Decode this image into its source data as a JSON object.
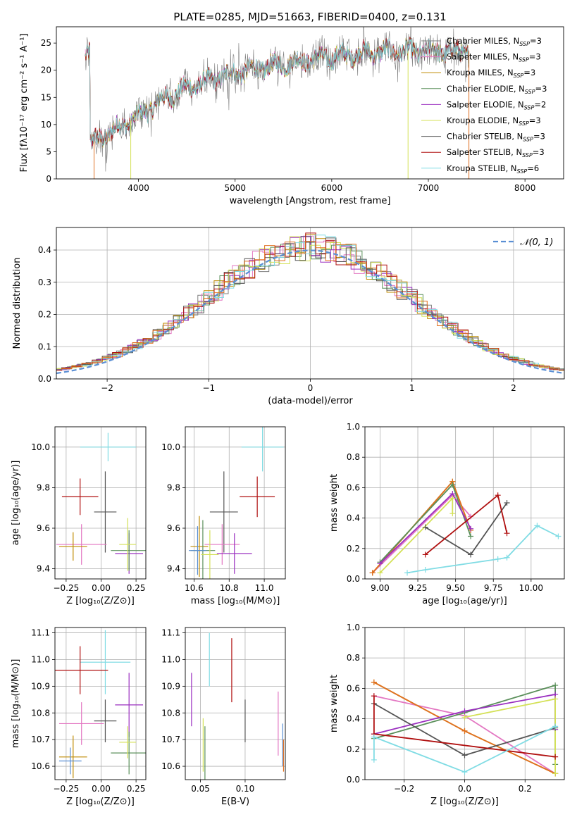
{
  "title": "PLATE=0285, MJD=51663, FIBERID=0400, z=0.131",
  "colors": {
    "chabrier_miles": "#808080",
    "salpeter_miles": "#e377c2",
    "kroupa_miles": "#bf8a00",
    "chabrier_elodie": "#5a8f5a",
    "salpeter_elodie": "#9b30c0",
    "kroupa_elodie": "#d4e157",
    "chabrier_stelib": "#555555",
    "salpeter_stelib": "#b01010",
    "kroupa_stelib": "#80dce4",
    "orange": "#e07020",
    "blue": "#5a8fd4",
    "normal": "#5a8fd4"
  },
  "chart_data": [
    {
      "id": "spectrum",
      "type": "line",
      "title": "PLATE=0285, MJD=51663, FIBERID=0400, z=0.131",
      "xlabel": "wavelength [Angstrom, rest frame]",
      "ylabel": "Flux [fλ10⁻¹⁷ erg cm⁻² s⁻¹ A⁻¹]",
      "xlim": [
        3150,
        8400
      ],
      "ylim": [
        0,
        28
      ],
      "xticks": [
        4000,
        5000,
        6000,
        7000,
        8000
      ],
      "yticks": [
        0,
        5,
        10,
        15,
        20,
        25
      ],
      "legend_position": "top-right",
      "legend": [
        {
          "label": "Chabrier MILES, N",
          "sub": "SSP",
          "tail": "=3",
          "color": "#808080"
        },
        {
          "label": "Salpeter MILES, N",
          "sub": "SSP",
          "tail": "=3",
          "color": "#e377c2"
        },
        {
          "label": "Kroupa MILES, N",
          "sub": "SSP",
          "tail": "=3",
          "color": "#bf8a00"
        },
        {
          "label": "Chabrier ELODIE, N",
          "sub": "SSP",
          "tail": "=3",
          "color": "#5a8f5a"
        },
        {
          "label": "Salpeter ELODIE, N",
          "sub": "SSP",
          "tail": "=2",
          "color": "#9b30c0"
        },
        {
          "label": "Kroupa ELODIE, N",
          "sub": "SSP",
          "tail": "=3",
          "color": "#d4e157"
        },
        {
          "label": "Chabrier STELIB, N",
          "sub": "SSP",
          "tail": "=3",
          "color": "#555555"
        },
        {
          "label": "Salpeter STELIB, N",
          "sub": "SSP",
          "tail": "=3",
          "color": "#b01010"
        },
        {
          "label": "Kroupa STELIB, N",
          "sub": "SSP",
          "tail": "=6",
          "color": "#80dce4"
        }
      ],
      "continuum": [
        [
          3500,
          6.5
        ],
        [
          3700,
          8.5
        ],
        [
          3900,
          10.5
        ],
        [
          4000,
          11.5
        ],
        [
          4200,
          14
        ],
        [
          4400,
          16
        ],
        [
          4700,
          18
        ],
        [
          5000,
          19.5
        ],
        [
          5300,
          20.5
        ],
        [
          5600,
          21.5
        ],
        [
          6000,
          22.5
        ],
        [
          6300,
          23
        ],
        [
          6600,
          23.5
        ],
        [
          7000,
          23.5
        ],
        [
          7400,
          23.5
        ]
      ]
    },
    {
      "id": "residuals",
      "type": "histogram",
      "xlabel": "(data-model)/error",
      "ylabel": "Normed distribution",
      "xlim": [
        -2.5,
        2.5
      ],
      "ylim": [
        0,
        0.47
      ],
      "xticks": [
        -2,
        -1,
        0,
        1,
        2
      ],
      "yticks": [
        0.0,
        0.1,
        0.2,
        0.3,
        0.4
      ],
      "grid": true,
      "legend_position": "top-right",
      "legend_label": "𝒩(0, 1)",
      "bin_width": 0.1
    },
    {
      "id": "age_vs_Z",
      "type": "errorbar",
      "xlabel": "Z [log₁₀(Z/Z⊙)]",
      "ylabel": "age  [log₁₀(age/yr)]",
      "xlim": [
        -0.33,
        0.32
      ],
      "ylim": [
        9.35,
        10.1
      ],
      "xticks": [
        -0.25,
        0.0,
        0.25
      ],
      "yticks": [
        9.4,
        9.6,
        9.8,
        10.0
      ],
      "grid": true,
      "points": [
        {
          "x": 0.05,
          "y": 10.0,
          "xerr": 0.2,
          "yerr": 0.07,
          "color": "#80dce4"
        },
        {
          "x": -0.15,
          "y": 9.755,
          "xerr": 0.13,
          "yerr": 0.09,
          "color": "#b01010"
        },
        {
          "x": 0.03,
          "y": 9.68,
          "xerr": 0.08,
          "yerr": 0.2,
          "color": "#555555"
        },
        {
          "x": -0.14,
          "y": 9.52,
          "xerr": 0.18,
          "yerr": 0.1,
          "color": "#e377c2"
        },
        {
          "x": -0.2,
          "y": 9.51,
          "xerr": 0.1,
          "yerr": 0.07,
          "color": "#bf8a00"
        },
        {
          "x": 0.2,
          "y": 9.475,
          "xerr": 0.1,
          "yerr": 0.1,
          "color": "#9b30c0"
        },
        {
          "x": 0.2,
          "y": 9.49,
          "xerr": 0.13,
          "yerr": 0.1,
          "color": "#5a8f5a"
        },
        {
          "x": 0.19,
          "y": 9.52,
          "xerr": 0.06,
          "yerr": 0.13,
          "color": "#d4e157"
        }
      ]
    },
    {
      "id": "age_vs_mass",
      "type": "errorbar",
      "xlabel": "mass [log₁₀(M/M⊙)]",
      "ylabel": "",
      "xlim": [
        10.55,
        11.12
      ],
      "ylim": [
        9.35,
        10.1
      ],
      "xticks": [
        10.6,
        10.8,
        11.0
      ],
      "yticks": [
        9.4,
        9.6,
        9.8,
        10.0
      ],
      "grid": true,
      "points": [
        {
          "x": 10.99,
          "y": 10.0,
          "xerr": 0.12,
          "yerr": 0.12,
          "color": "#80dce4"
        },
        {
          "x": 10.96,
          "y": 9.755,
          "xerr": 0.1,
          "yerr": 0.1,
          "color": "#b01010"
        },
        {
          "x": 10.77,
          "y": 9.68,
          "xerr": 0.08,
          "yerr": 0.2,
          "color": "#555555"
        },
        {
          "x": 10.76,
          "y": 9.52,
          "xerr": 0.1,
          "yerr": 0.1,
          "color": "#e377c2"
        },
        {
          "x": 10.63,
          "y": 9.51,
          "xerr": 0.05,
          "yerr": 0.15,
          "color": "#bf8a00"
        },
        {
          "x": 10.83,
          "y": 9.475,
          "xerr": 0.1,
          "yerr": 0.1,
          "color": "#9b30c0"
        },
        {
          "x": 10.65,
          "y": 9.49,
          "xerr": 0.07,
          "yerr": 0.15,
          "color": "#5a8f5a"
        },
        {
          "x": 10.69,
          "y": 9.47,
          "xerr": 0.05,
          "yerr": 0.12,
          "color": "#d4e157"
        },
        {
          "x": 10.62,
          "y": 9.49,
          "xerr": 0.05,
          "yerr": 0.12,
          "color": "#5a8fd4"
        }
      ]
    },
    {
      "id": "weight_vs_age",
      "type": "line",
      "xlabel": "age  [log₁₀(age/yr)]",
      "ylabel": "mass weight",
      "xlim": [
        8.9,
        10.22
      ],
      "ylim": [
        0,
        1
      ],
      "xticks": [
        9.0,
        9.25,
        9.5,
        9.75,
        10.0
      ],
      "yticks": [
        0.0,
        0.2,
        0.4,
        0.6,
        0.8,
        1.0
      ],
      "grid": true,
      "series": [
        {
          "color": "#e377c2",
          "points": [
            [
              8.95,
              0.04
            ],
            [
              9.48,
              0.55
            ],
            [
              9.6,
              0.41
            ]
          ]
        },
        {
          "color": "#bf8a00",
          "points": [
            [
              8.95,
              0.04
            ],
            [
              9.48,
              0.64
            ],
            [
              9.6,
              0.32
            ]
          ]
        },
        {
          "color": "#e07020",
          "points": [
            [
              8.95,
              0.04
            ],
            [
              9.48,
              0.64
            ],
            [
              9.6,
              0.32
            ]
          ]
        },
        {
          "color": "#5a8f5a",
          "points": [
            [
              9.0,
              0.11
            ],
            [
              9.48,
              0.62
            ],
            [
              9.6,
              0.28
            ]
          ]
        },
        {
          "color": "#9b30c0",
          "points": [
            [
              9.0,
              0.1
            ],
            [
              9.48,
              0.56
            ],
            [
              9.6,
              0.33
            ]
          ]
        },
        {
          "color": "#d4e157",
          "points": [
            [
              9.0,
              0.04
            ],
            [
              9.48,
              0.53
            ],
            [
              9.48,
              0.43
            ]
          ]
        },
        {
          "color": "#555555",
          "points": [
            [
              9.3,
              0.34
            ],
            [
              9.6,
              0.16
            ],
            [
              9.84,
              0.5
            ]
          ]
        },
        {
          "color": "#b01010",
          "points": [
            [
              9.3,
              0.16
            ],
            [
              9.78,
              0.55
            ],
            [
              9.84,
              0.3
            ]
          ]
        },
        {
          "color": "#80dce4",
          "points": [
            [
              9.18,
              0.04
            ],
            [
              9.3,
              0.06
            ],
            [
              9.78,
              0.13
            ],
            [
              9.84,
              0.14
            ],
            [
              10.04,
              0.35
            ],
            [
              10.18,
              0.28
            ]
          ]
        }
      ]
    },
    {
      "id": "mass_vs_Z",
      "type": "errorbar",
      "xlabel": "Z [log₁₀(Z/Z⊙)]",
      "ylabel": "mass [log₁₀(M/M⊙)]",
      "xlim": [
        -0.33,
        0.32
      ],
      "ylim": [
        10.55,
        11.12
      ],
      "xticks": [
        -0.25,
        0.0,
        0.25
      ],
      "yticks": [
        10.6,
        10.7,
        10.8,
        10.9,
        11.0,
        11.1
      ],
      "grid": true,
      "points": [
        {
          "x": 0.03,
          "y": 10.99,
          "xerr": 0.18,
          "yerr": 0.12,
          "color": "#80dce4"
        },
        {
          "x": -0.15,
          "y": 10.96,
          "xerr": 0.2,
          "yerr": 0.09,
          "color": "#b01010"
        },
        {
          "x": 0.03,
          "y": 10.77,
          "xerr": 0.08,
          "yerr": 0.08,
          "color": "#555555"
        },
        {
          "x": -0.14,
          "y": 10.76,
          "xerr": 0.16,
          "yerr": 0.08,
          "color": "#e377c2"
        },
        {
          "x": 0.2,
          "y": 10.83,
          "xerr": 0.1,
          "yerr": 0.12,
          "color": "#9b30c0"
        },
        {
          "x": 0.2,
          "y": 10.65,
          "xerr": 0.13,
          "yerr": 0.08,
          "color": "#5a8f5a"
        },
        {
          "x": 0.19,
          "y": 10.69,
          "xerr": 0.06,
          "yerr": 0.06,
          "color": "#d4e157"
        },
        {
          "x": -0.2,
          "y": 10.635,
          "xerr": 0.1,
          "yerr": 0.08,
          "color": "#bf8a00"
        },
        {
          "x": -0.22,
          "y": 10.62,
          "xerr": 0.08,
          "yerr": 0.05,
          "color": "#5a8fd4"
        }
      ]
    },
    {
      "id": "mass_vs_ebv",
      "type": "errorbar",
      "xlabel": "E(B-V)",
      "ylabel": "",
      "xlim": [
        0.033,
        0.145
      ],
      "ylim": [
        10.55,
        11.12
      ],
      "xticks": [
        0.05,
        0.1
      ],
      "ytick_labels": [
        "10.6",
        "10.7",
        "10.8",
        "10.9",
        "11.0",
        "11.1"
      ],
      "xtick_labels": [
        "0.05",
        "0.10"
      ],
      "yticks": [
        10.6,
        10.7,
        10.8,
        10.9,
        11.0,
        11.1
      ],
      "grid": true,
      "points": [
        {
          "x": 0.04,
          "y": 10.85,
          "xerr": 0,
          "yerr": 0.1,
          "color": "#9b30c0"
        },
        {
          "x": 0.053,
          "y": 10.68,
          "xerr": 0,
          "yerr": 0.1,
          "color": "#d4e157"
        },
        {
          "x": 0.055,
          "y": 10.65,
          "xerr": 0,
          "yerr": 0.1,
          "color": "#5a8f5a"
        },
        {
          "x": 0.06,
          "y": 11.0,
          "xerr": 0,
          "yerr": 0.1,
          "color": "#80dce4"
        },
        {
          "x": 0.085,
          "y": 10.96,
          "xerr": 0,
          "yerr": 0.12,
          "color": "#b01010"
        },
        {
          "x": 0.1,
          "y": 10.77,
          "xerr": 0,
          "yerr": 0.08,
          "color": "#555555"
        },
        {
          "x": 0.137,
          "y": 10.76,
          "xerr": 0,
          "yerr": 0.12,
          "color": "#e377c2"
        },
        {
          "x": 0.142,
          "y": 10.68,
          "xerr": 0,
          "yerr": 0.08,
          "color": "#5a8fd4"
        },
        {
          "x": 0.143,
          "y": 10.64,
          "xerr": 0,
          "yerr": 0.06,
          "color": "#e07020"
        }
      ]
    },
    {
      "id": "weight_vs_Z",
      "type": "line",
      "xlabel": "Z [log₁₀(Z/Z⊙)]",
      "ylabel": "mass weight",
      "xlim": [
        -0.33,
        0.33
      ],
      "ylim": [
        0,
        1
      ],
      "xticks": [
        -0.2,
        0.0,
        0.2
      ],
      "yticks": [
        0.0,
        0.2,
        0.4,
        0.6,
        0.8,
        1.0
      ],
      "grid": true,
      "series": [
        {
          "color": "#e377c2",
          "points": [
            [
              -0.3,
              0.55
            ],
            [
              0.0,
              0.42
            ],
            [
              0.3,
              0.04
            ]
          ]
        },
        {
          "color": "#bf8a00",
          "points": [
            [
              -0.3,
              0.64
            ],
            [
              0.0,
              0.32
            ],
            [
              0.3,
              0.04
            ]
          ]
        },
        {
          "color": "#e07020",
          "points": [
            [
              -0.3,
              0.64
            ],
            [
              0.0,
              0.32
            ],
            [
              0.3,
              0.04
            ]
          ]
        },
        {
          "color": "#5a8f5a",
          "points": [
            [
              -0.3,
              0.27
            ],
            [
              0.0,
              0.44
            ],
            [
              0.3,
              0.62
            ],
            [
              0.3,
              0.1
            ]
          ]
        },
        {
          "color": "#9b30c0",
          "points": [
            [
              -0.3,
              0.3
            ],
            [
              0.0,
              0.45
            ],
            [
              0.3,
              0.56
            ],
            [
              0.3,
              0.33
            ]
          ]
        },
        {
          "color": "#d4e157",
          "points": [
            [
              0.0,
              0.41
            ],
            [
              0.3,
              0.53
            ],
            [
              0.3,
              0.04
            ]
          ]
        },
        {
          "color": "#555555",
          "points": [
            [
              -0.3,
              0.5
            ],
            [
              0.0,
              0.16
            ],
            [
              0.3,
              0.34
            ]
          ]
        },
        {
          "color": "#b01010",
          "points": [
            [
              -0.3,
              0.55
            ],
            [
              -0.3,
              0.3
            ],
            [
              0.3,
              0.15
            ]
          ]
        },
        {
          "color": "#80dce4",
          "points": [
            [
              -0.3,
              0.13
            ],
            [
              -0.3,
              0.28
            ],
            [
              0.0,
              0.05
            ],
            [
              0.3,
              0.35
            ]
          ]
        }
      ]
    }
  ]
}
